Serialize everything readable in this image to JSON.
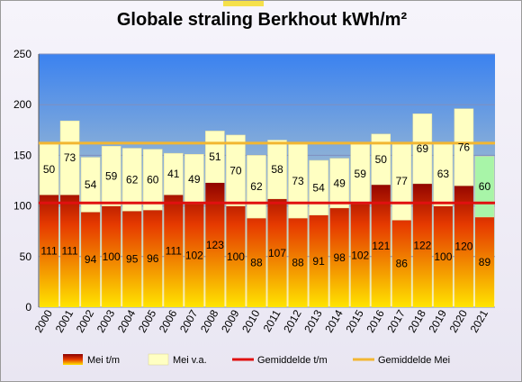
{
  "chart_data": {
    "type": "bar",
    "stacked": true,
    "title": "Globale straling Berkhout kWh/m²",
    "categories": [
      "2000",
      "2001",
      "2002",
      "2003",
      "2004",
      "2005",
      "2006",
      "2007",
      "2008",
      "2009",
      "2010",
      "2011",
      "2012",
      "2013",
      "2014",
      "2015",
      "2016",
      "2017",
      "2018",
      "2019",
      "2020",
      "2021"
    ],
    "series": [
      {
        "name": "Mei t/m",
        "values": [
          111,
          111,
          94,
          100,
          95,
          96,
          111,
          102,
          123,
          100,
          88,
          107,
          88,
          91,
          98,
          102,
          121,
          86,
          122,
          100,
          120,
          89
        ]
      },
      {
        "name": "Mei v.a.",
        "values": [
          50,
          73,
          54,
          59,
          62,
          60,
          41,
          49,
          51,
          70,
          62,
          58,
          73,
          54,
          49,
          59,
          50,
          77,
          69,
          63,
          76,
          60
        ]
      }
    ],
    "reference_lines": [
      {
        "name": "Gemiddelde t/m",
        "value": 103,
        "color": "#e01010"
      },
      {
        "name": "Gemiddelde Mei",
        "value": 162,
        "color": "#f2b632"
      }
    ],
    "ylim": [
      0,
      250
    ],
    "yticks": [
      0,
      50,
      100,
      150,
      200,
      250
    ],
    "grid": true,
    "legend_position": "bottom",
    "highlight_last_category": true,
    "colors": {
      "mei_tm_top": "#8b0000",
      "mei_tm_bottom": "#ffe400",
      "mei_va": "#ffffc2",
      "mei_va_last": "#a8f5a8",
      "plot_bg_top": "#3b82f0",
      "plot_bg_bottom": "#fff2b3"
    }
  }
}
